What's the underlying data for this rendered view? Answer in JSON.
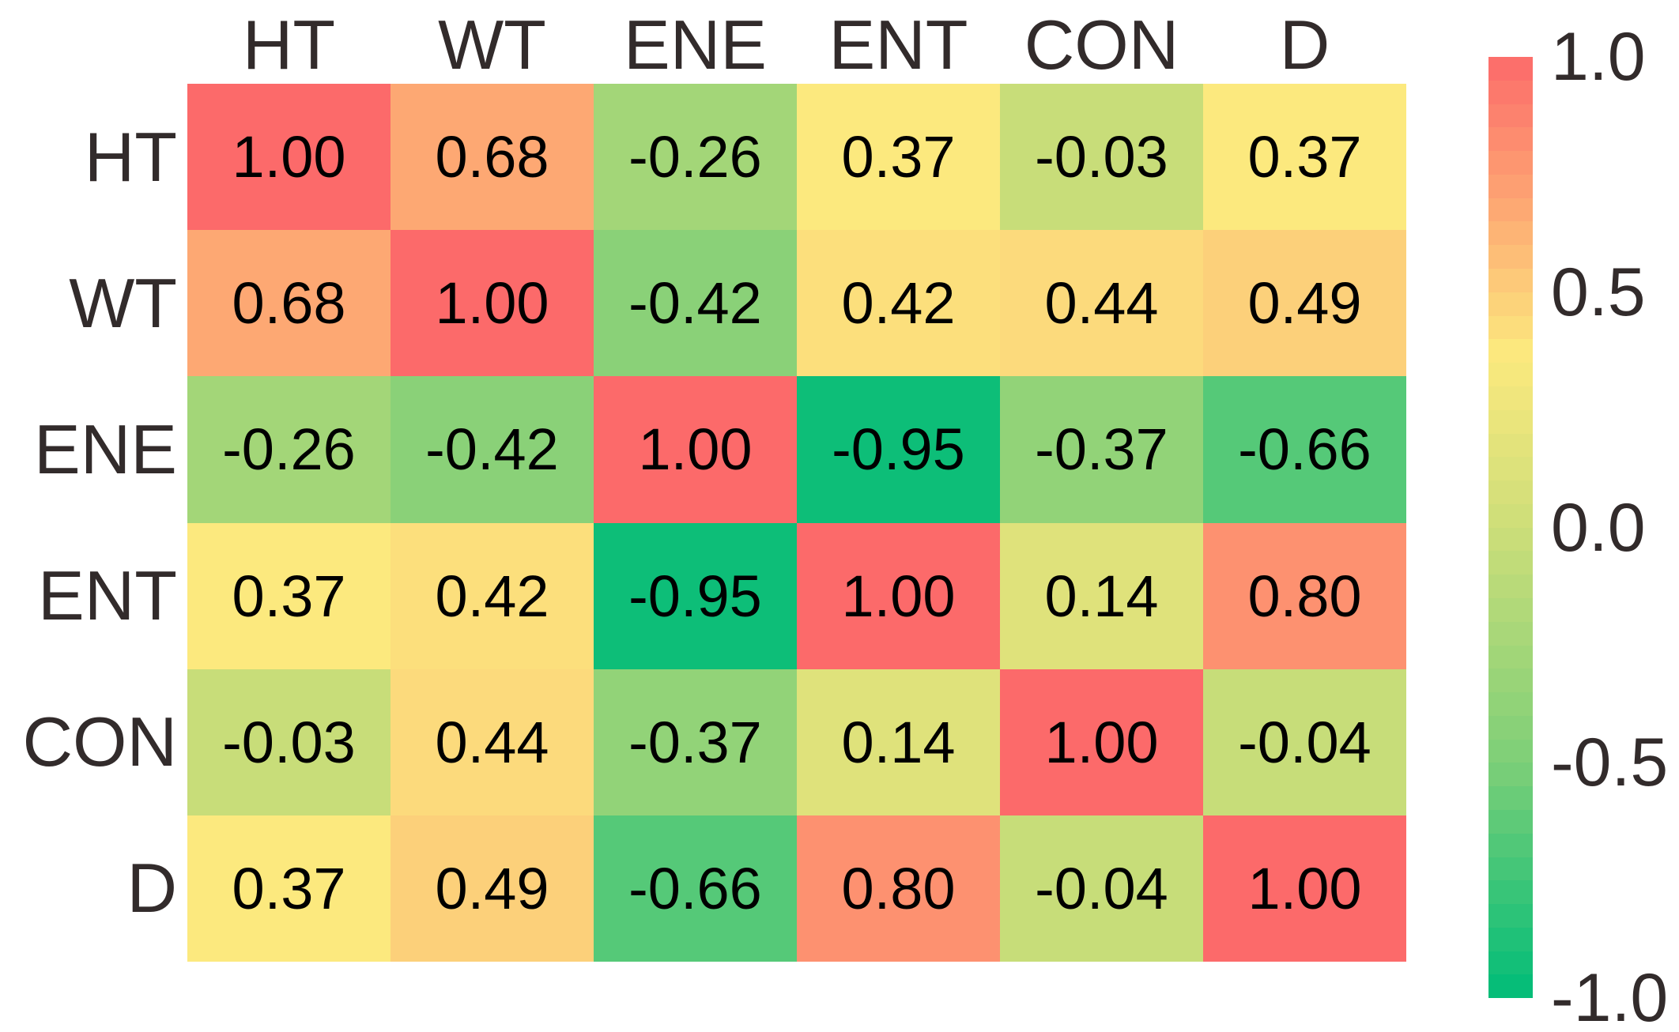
{
  "chart_data": {
    "type": "heatmap",
    "title": "",
    "xlabel": "",
    "ylabel": "",
    "categories": [
      "HT",
      "WT",
      "ENE",
      "ENT",
      "CON",
      "D"
    ],
    "matrix": [
      [
        1.0,
        0.68,
        -0.26,
        0.37,
        -0.03,
        0.37
      ],
      [
        0.68,
        1.0,
        -0.42,
        0.42,
        0.44,
        0.49
      ],
      [
        -0.26,
        -0.42,
        1.0,
        -0.95,
        -0.37,
        -0.66
      ],
      [
        0.37,
        0.42,
        -0.95,
        1.0,
        0.14,
        0.8
      ],
      [
        -0.03,
        0.44,
        -0.37,
        0.14,
        1.0,
        -0.04
      ],
      [
        0.37,
        0.49,
        -0.66,
        0.8,
        -0.04,
        1.0
      ]
    ],
    "value_decimals": 2,
    "grid": false,
    "legend_position": "right-colorbar",
    "colorbar": {
      "min": -1.0,
      "max": 1.0,
      "ticks": [
        "1.0",
        "0.5",
        "0.0",
        "-0.5",
        "-1.0"
      ],
      "tick_values": [
        1.0,
        0.5,
        0.0,
        -0.5,
        -1.0
      ],
      "bands": 40
    },
    "colormap_stops": [
      {
        "t": -1.0,
        "color": "#00BC78"
      },
      {
        "t": -0.5,
        "color": "#7DCF78"
      },
      {
        "t": 0.0,
        "color": "#CDDE79"
      },
      {
        "t": 0.37,
        "color": "#FCE97E"
      },
      {
        "t": 0.68,
        "color": "#FDA873"
      },
      {
        "t": 1.0,
        "color": "#FC6A6A"
      }
    ],
    "cell_text_color": "#000000",
    "label_color": "#322B2B"
  },
  "layout_note_visible_text_only": true
}
